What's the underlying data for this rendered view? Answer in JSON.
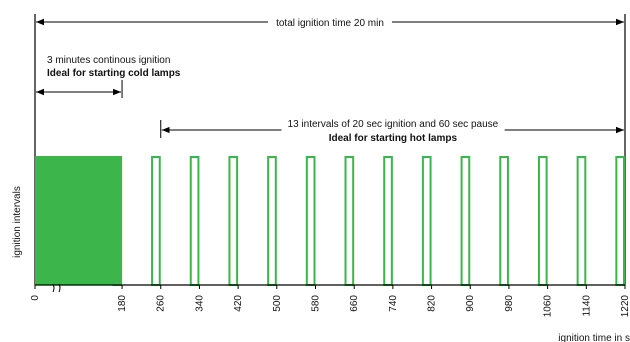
{
  "chart_data": {
    "type": "bar",
    "title": "",
    "xlabel": "ignition time in s",
    "ylabel": "ignition intervals",
    "xlim": [
      0,
      1220
    ],
    "x_ticks": [
      0,
      180,
      260,
      340,
      420,
      500,
      580,
      660,
      740,
      820,
      900,
      980,
      1060,
      1140,
      1220
    ],
    "continuous_ignition": {
      "start": 0,
      "end": 180
    },
    "pulses": [
      {
        "start": 160,
        "end": 180
      },
      {
        "start": 240,
        "end": 260
      },
      {
        "start": 320,
        "end": 340
      },
      {
        "start": 400,
        "end": 420
      },
      {
        "start": 480,
        "end": 500
      },
      {
        "start": 560,
        "end": 580
      },
      {
        "start": 640,
        "end": 660
      },
      {
        "start": 720,
        "end": 740
      },
      {
        "start": 800,
        "end": 820
      },
      {
        "start": 880,
        "end": 900
      },
      {
        "start": 960,
        "end": 980
      },
      {
        "start": 1040,
        "end": 1060
      },
      {
        "start": 1120,
        "end": 1140
      },
      {
        "start": 1200,
        "end": 1220
      }
    ],
    "annotations": {
      "total": {
        "label": "total ignition time 20 min",
        "start": 0,
        "end": 1220
      },
      "continuous": {
        "label1": "3 minutes continous ignition",
        "label2": "Ideal for starting cold lamps",
        "start": 0,
        "end": 180
      },
      "intervals": {
        "label1": "13 intervals of 20 sec ignition and 60 sec pause",
        "label2": "Ideal for starting hot lamps",
        "start": 260,
        "end": 1220
      }
    },
    "colors": {
      "green": "#3cb54a",
      "line": "#000000"
    }
  }
}
